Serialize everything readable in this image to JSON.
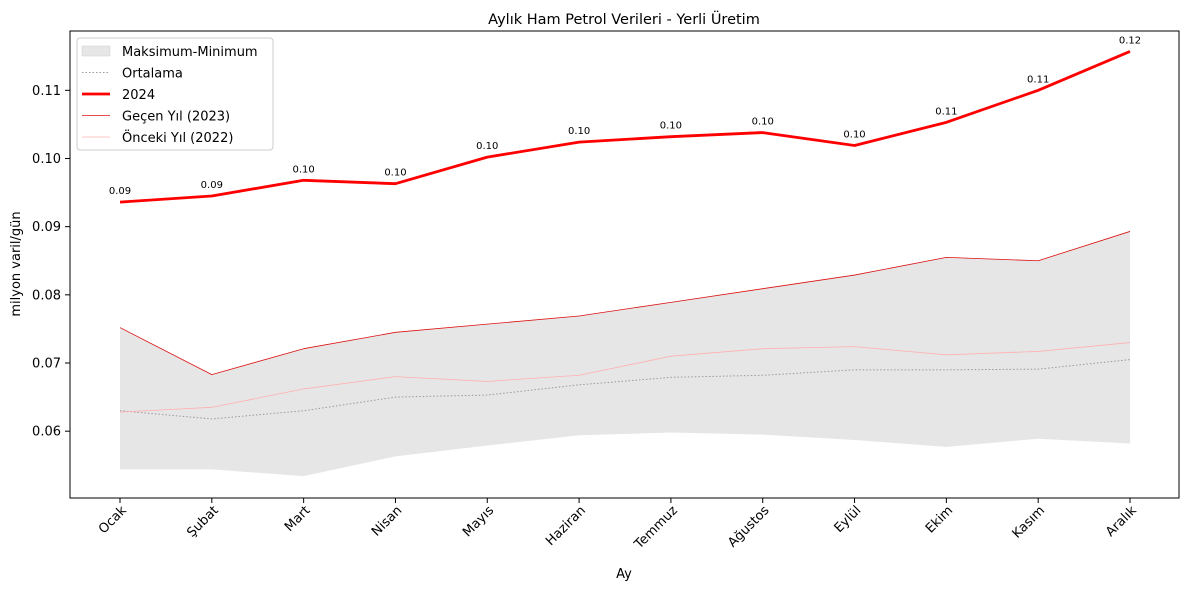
{
  "chart_data": {
    "type": "line",
    "title": "Aylık Ham Petrol Verileri - Yerli Üretim",
    "xlabel": "Ay",
    "ylabel": "milyon varil/gün",
    "categories": [
      "Ocak",
      "Şubat",
      "Mart",
      "Nisan",
      "Mayıs",
      "Haziran",
      "Temmuz",
      "Ağustos",
      "Eylül",
      "Ekim",
      "Kasım",
      "Aralık"
    ],
    "ylim": [
      0.0502,
      0.1187
    ],
    "yticks": [
      "0.06",
      "0.07",
      "0.08",
      "0.09",
      "0.10",
      "0.11"
    ],
    "grid": false,
    "legend_position": "top-left",
    "band": {
      "name": "Maksimum-Minimum",
      "color": "#e6e6e6",
      "max": [
        0.0752,
        0.0683,
        0.0721,
        0.0745,
        0.0757,
        0.0769,
        0.0789,
        0.0809,
        0.0829,
        0.0855,
        0.085,
        0.0893
      ],
      "min": [
        0.0544,
        0.0544,
        0.0534,
        0.0563,
        0.0579,
        0.0594,
        0.0598,
        0.0595,
        0.0587,
        0.0577,
        0.0589,
        0.0582
      ]
    },
    "series": [
      {
        "name": "Ortalama",
        "color": "#999999",
        "style": "dotted",
        "values": [
          0.063,
          0.0618,
          0.063,
          0.065,
          0.0653,
          0.0668,
          0.0679,
          0.0682,
          0.069,
          0.069,
          0.0691,
          0.0705
        ]
      },
      {
        "name": "2024",
        "color": "#ff0000",
        "style": "thick",
        "values": [
          0.0936,
          0.0945,
          0.0968,
          0.0963,
          0.1002,
          0.1024,
          0.1032,
          0.1038,
          0.1019,
          0.1053,
          0.11,
          0.1157
        ],
        "labels": [
          "0.09",
          "0.09",
          "0.10",
          "0.10",
          "0.10",
          "0.10",
          "0.10",
          "0.10",
          "0.10",
          "0.11",
          "0.11",
          "0.12"
        ]
      },
      {
        "name": "Geçen Yıl (2023)",
        "color": "#dd1111",
        "style": "thin",
        "values": [
          0.0752,
          0.0683,
          0.0721,
          0.0745,
          0.0757,
          0.0769,
          0.0789,
          0.0809,
          0.0829,
          0.0855,
          0.085,
          0.0893
        ]
      },
      {
        "name": "Önceki Yıl (2022)",
        "color": "#ffb0b0",
        "style": "thin",
        "values": [
          0.0628,
          0.0635,
          0.0662,
          0.068,
          0.0673,
          0.0682,
          0.071,
          0.0721,
          0.0724,
          0.0712,
          0.0717,
          0.073
        ]
      }
    ]
  }
}
